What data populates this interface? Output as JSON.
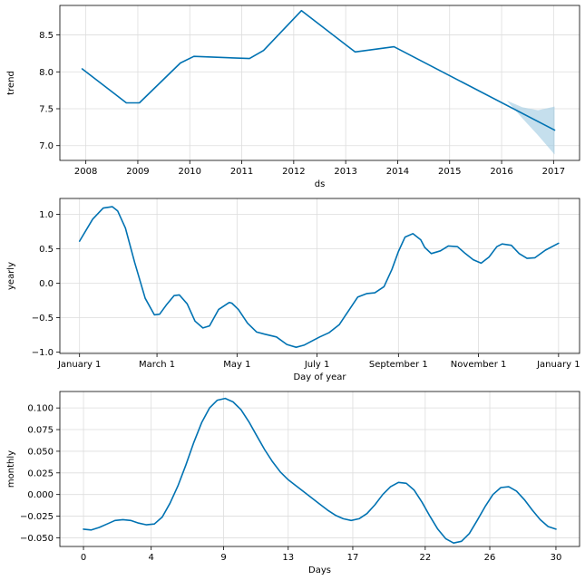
{
  "chart_data": [
    {
      "type": "line",
      "xlabel": "ds",
      "ylabel": "trend",
      "x_ticks": [
        "2008",
        "2009",
        "2010",
        "2011",
        "2012",
        "2013",
        "2014",
        "2015",
        "2016",
        "2017"
      ],
      "y_ticks": [
        "7.0",
        "7.5",
        "8.0",
        "8.5"
      ],
      "xlim": [
        2007.5,
        2017.5
      ],
      "ylim": [
        6.8,
        8.9
      ],
      "grid": true,
      "line_color": "#0072B2",
      "band_color": "#9ecae1",
      "series": [
        {
          "x": [
            2007.93,
            2008.78,
            2009.03,
            2009.82,
            2010.08,
            2011.15,
            2011.42,
            2012.15,
            2013.18,
            2013.93,
            2017.02
          ],
          "y": [
            8.04,
            7.58,
            7.58,
            8.12,
            8.21,
            8.18,
            8.29,
            8.83,
            8.27,
            8.34,
            7.21
          ]
        }
      ],
      "uncertainty": {
        "x": [
          2016.1,
          2016.4,
          2016.7,
          2017.02
        ],
        "upper": [
          7.61,
          7.52,
          7.48,
          7.53
        ],
        "lower": [
          7.61,
          7.37,
          7.14,
          6.88
        ]
      }
    },
    {
      "type": "line",
      "xlabel": "Day of year",
      "ylabel": "yearly",
      "x_ticks": [
        "January 1",
        "March 1",
        "May 1",
        "July 1",
        "September 1",
        "November 1",
        "January 1"
      ],
      "x_tick_values": [
        0,
        59,
        120,
        181,
        243,
        304,
        365
      ],
      "y_ticks": [
        "−1.0",
        "−0.5",
        "0.0",
        "0.5",
        "1.0"
      ],
      "y_tick_values": [
        -1.0,
        -0.5,
        0.0,
        0.5,
        1.0
      ],
      "xlim": [
        -15,
        381
      ],
      "ylim": [
        -1.02,
        1.23
      ],
      "grid": true,
      "line_color": "#0072B2",
      "series": [
        {
          "x": [
            0,
            10,
            18,
            25,
            29,
            35,
            42,
            50,
            57,
            61,
            66,
            72,
            76,
            82,
            88,
            94,
            99,
            106,
            114,
            116,
            121,
            128,
            135,
            141,
            150,
            158,
            165,
            171,
            178,
            183,
            190,
            198,
            205,
            212,
            219,
            225,
            232,
            238,
            243,
            248,
            254,
            260,
            263,
            268,
            275,
            281,
            288,
            294,
            300,
            306,
            312,
            318,
            322,
            329,
            335,
            341,
            347,
            355,
            365
          ],
          "y": [
            0.61,
            0.93,
            1.09,
            1.11,
            1.05,
            0.8,
            0.3,
            -0.22,
            -0.46,
            -0.45,
            -0.32,
            -0.18,
            -0.17,
            -0.3,
            -0.55,
            -0.65,
            -0.62,
            -0.38,
            -0.28,
            -0.29,
            -0.38,
            -0.58,
            -0.71,
            -0.74,
            -0.78,
            -0.89,
            -0.93,
            -0.9,
            -0.83,
            -0.78,
            -0.72,
            -0.6,
            -0.4,
            -0.2,
            -0.15,
            -0.14,
            -0.05,
            0.2,
            0.46,
            0.67,
            0.72,
            0.63,
            0.52,
            0.43,
            0.47,
            0.54,
            0.53,
            0.43,
            0.34,
            0.29,
            0.38,
            0.53,
            0.57,
            0.55,
            0.43,
            0.36,
            0.37,
            0.48,
            0.58
          ]
        }
      ]
    },
    {
      "type": "line",
      "xlabel": "Days",
      "ylabel": "monthly",
      "x_ticks": [
        "0",
        "4",
        "9",
        "13",
        "17",
        "22",
        "26",
        "30"
      ],
      "x_tick_values": [
        0,
        4.3,
        8.9,
        13.0,
        17.1,
        21.7,
        25.8,
        30.0
      ],
      "y_ticks": [
        "−0.050",
        "−0.025",
        "0.000",
        "0.025",
        "0.050",
        "0.075",
        "0.100"
      ],
      "y_tick_values": [
        -0.05,
        -0.025,
        0.0,
        0.025,
        0.05,
        0.075,
        0.1
      ],
      "xlim": [
        -1.5,
        31.5
      ],
      "ylim": [
        -0.06,
        0.119
      ],
      "grid": true,
      "line_color": "#0072B2",
      "series": [
        {
          "x": [
            0,
            0.5,
            1.0,
            1.5,
            2.0,
            2.5,
            3.0,
            3.5,
            4.0,
            4.5,
            5.0,
            5.5,
            6.0,
            6.5,
            7.0,
            7.5,
            8.0,
            8.5,
            9.0,
            9.5,
            10.0,
            10.5,
            11.0,
            11.5,
            12.0,
            12.5,
            13.0,
            13.5,
            14.0,
            14.5,
            15.0,
            15.5,
            16.0,
            16.5,
            17.0,
            17.5,
            18.0,
            18.5,
            19.0,
            19.5,
            20.0,
            20.5,
            21.0,
            21.5,
            22.0,
            22.5,
            23.0,
            23.5,
            24.0,
            24.5,
            25.0,
            25.5,
            26.0,
            26.5,
            27.0,
            27.5,
            28.0,
            28.5,
            29.0,
            29.5,
            30.0
          ],
          "y": [
            -0.04,
            -0.041,
            -0.038,
            -0.034,
            -0.03,
            -0.029,
            -0.03,
            -0.033,
            -0.035,
            -0.034,
            -0.026,
            -0.01,
            0.01,
            0.034,
            0.06,
            0.083,
            0.1,
            0.109,
            0.111,
            0.107,
            0.098,
            0.084,
            0.068,
            0.052,
            0.038,
            0.026,
            0.017,
            0.01,
            0.003,
            -0.004,
            -0.011,
            -0.018,
            -0.024,
            -0.028,
            -0.03,
            -0.028,
            -0.022,
            -0.012,
            0.0,
            0.009,
            0.014,
            0.013,
            0.005,
            -0.009,
            -0.025,
            -0.04,
            -0.051,
            -0.056,
            -0.054,
            -0.045,
            -0.03,
            -0.014,
            0.0,
            0.008,
            0.009,
            0.004,
            -0.006,
            -0.018,
            -0.029,
            -0.037,
            -0.04
          ]
        }
      ]
    }
  ]
}
